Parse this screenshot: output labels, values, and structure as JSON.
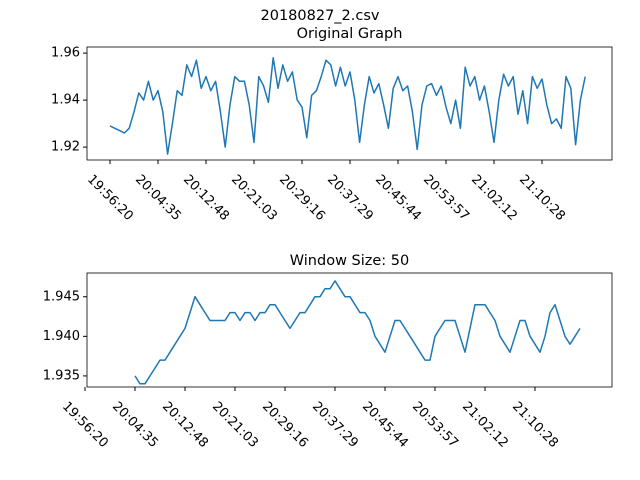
{
  "title": "20180827_2.csv",
  "chart_data": [
    {
      "type": "line",
      "title": "Original Graph",
      "color": "#1f77b4",
      "categories": [
        "19:56:20",
        null,
        null,
        null,
        null,
        null,
        null,
        null,
        null,
        null,
        "20:04:35",
        null,
        null,
        null,
        null,
        null,
        null,
        null,
        null,
        null,
        "20:12:48",
        null,
        null,
        null,
        null,
        null,
        null,
        null,
        null,
        null,
        "20:21:03",
        null,
        null,
        null,
        null,
        null,
        null,
        null,
        null,
        null,
        "20:29:16",
        null,
        null,
        null,
        null,
        null,
        null,
        null,
        null,
        null,
        "20:37:29",
        null,
        null,
        null,
        null,
        null,
        null,
        null,
        null,
        null,
        "20:45:44",
        null,
        null,
        null,
        null,
        null,
        null,
        null,
        null,
        null,
        "20:53:57",
        null,
        null,
        null,
        null,
        null,
        null,
        null,
        null,
        null,
        "21:02:12",
        null,
        null,
        null,
        null,
        null,
        null,
        null,
        null,
        null,
        "21:10:28",
        null,
        null,
        null,
        null,
        null,
        null,
        null,
        null,
        null
      ],
      "values": [
        1.929,
        1.928,
        1.927,
        1.926,
        1.928,
        1.935,
        1.943,
        1.94,
        1.948,
        1.94,
        1.944,
        1.935,
        1.917,
        1.93,
        1.944,
        1.942,
        1.955,
        1.95,
        1.957,
        1.945,
        1.95,
        1.944,
        1.948,
        1.935,
        1.92,
        1.938,
        1.95,
        1.948,
        1.948,
        1.938,
        1.922,
        1.95,
        1.946,
        1.939,
        1.958,
        1.945,
        1.955,
        1.948,
        1.952,
        1.94,
        1.937,
        1.924,
        1.942,
        1.944,
        1.95,
        1.957,
        1.955,
        1.946,
        1.954,
        1.946,
        1.952,
        1.94,
        1.922,
        1.938,
        1.95,
        1.943,
        1.947,
        1.938,
        1.928,
        1.945,
        1.95,
        1.944,
        1.946,
        1.935,
        1.919,
        1.938,
        1.946,
        1.947,
        1.942,
        1.946,
        1.937,
        1.93,
        1.94,
        1.928,
        1.954,
        1.946,
        1.95,
        1.94,
        1.946,
        1.935,
        1.922,
        1.94,
        1.951,
        1.946,
        1.95,
        1.934,
        1.944,
        1.93,
        1.95,
        1.945,
        1.949,
        1.938,
        1.93,
        1.932,
        1.928,
        1.95,
        1.945,
        1.921,
        1.94,
        1.95
      ],
      "ylim": [
        1.9145,
        1.9626
      ],
      "yticks": [
        1.92,
        1.94,
        1.96
      ]
    },
    {
      "type": "line",
      "title": "Window Size: 50",
      "color": "#1f77b4",
      "categories": [
        "19:56:20",
        null,
        null,
        null,
        null,
        null,
        null,
        null,
        null,
        null,
        "20:04:35",
        null,
        null,
        null,
        null,
        null,
        null,
        null,
        null,
        null,
        "20:12:48",
        null,
        null,
        null,
        null,
        null,
        null,
        null,
        null,
        null,
        "20:21:03",
        null,
        null,
        null,
        null,
        null,
        null,
        null,
        null,
        null,
        "20:29:16",
        null,
        null,
        null,
        null,
        null,
        null,
        null,
        null,
        null,
        "20:37:29",
        null,
        null,
        null,
        null,
        null,
        null,
        null,
        null,
        null,
        "20:45:44",
        null,
        null,
        null,
        null,
        null,
        null,
        null,
        null,
        null,
        "20:53:57",
        null,
        null,
        null,
        null,
        null,
        null,
        null,
        null,
        null,
        "21:02:12",
        null,
        null,
        null,
        null,
        null,
        null,
        null,
        null,
        null,
        "21:10:28",
        null,
        null,
        null,
        null,
        null,
        null,
        null,
        null,
        null
      ],
      "values": [
        null,
        null,
        null,
        null,
        null,
        null,
        null,
        null,
        null,
        null,
        1.935,
        1.934,
        1.934,
        1.935,
        1.936,
        1.937,
        1.937,
        1.938,
        1.939,
        1.94,
        1.941,
        1.943,
        1.945,
        1.944,
        1.943,
        1.942,
        1.942,
        1.942,
        1.942,
        1.943,
        1.943,
        1.942,
        1.943,
        1.943,
        1.942,
        1.943,
        1.943,
        1.944,
        1.944,
        1.943,
        1.942,
        1.941,
        1.942,
        1.943,
        1.943,
        1.944,
        1.945,
        1.945,
        1.946,
        1.946,
        1.947,
        1.946,
        1.945,
        1.945,
        1.944,
        1.943,
        1.943,
        1.942,
        1.94,
        1.939,
        1.938,
        1.94,
        1.942,
        1.942,
        1.941,
        1.94,
        1.939,
        1.938,
        1.937,
        1.937,
        1.94,
        1.941,
        1.942,
        1.942,
        1.942,
        1.94,
        1.938,
        1.941,
        1.944,
        1.944,
        1.944,
        1.943,
        1.942,
        1.94,
        1.939,
        1.938,
        1.94,
        1.942,
        1.942,
        1.94,
        1.939,
        1.938,
        1.94,
        1.943,
        1.944,
        1.942,
        1.94,
        1.939,
        1.94,
        1.941
      ],
      "ylim": [
        1.9336,
        1.948
      ],
      "yticks": [
        {
          "value": 1.935,
          "label": "1.935"
        },
        {
          "value": 1.94,
          "label": "1.940"
        },
        {
          "value": 1.945,
          "label": "1.945"
        }
      ]
    }
  ]
}
